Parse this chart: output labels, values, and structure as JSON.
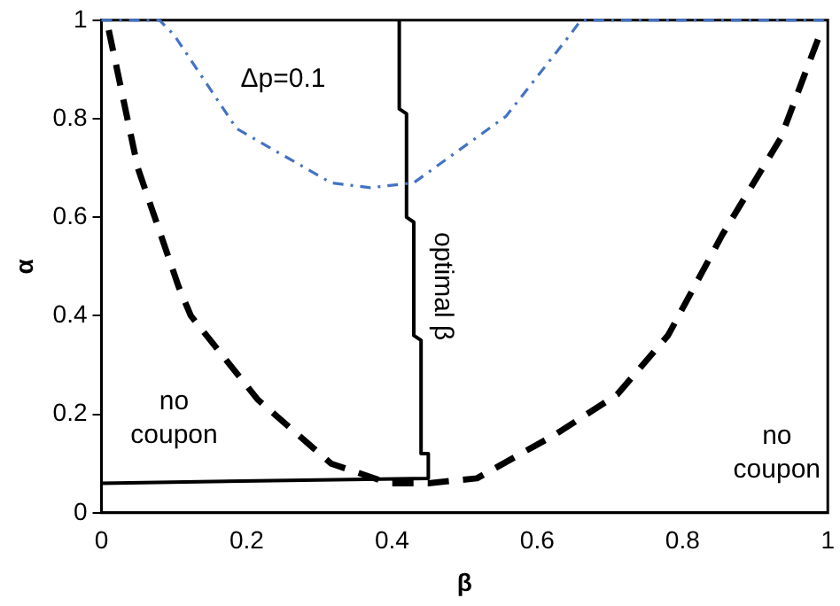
{
  "chart_data": {
    "type": "line",
    "xlabel": "β",
    "ylabel": "α",
    "xlim": [
      0,
      1
    ],
    "ylim": [
      0,
      1
    ],
    "xticks": [
      0,
      0.2,
      0.4,
      0.6,
      0.8,
      1
    ],
    "yticks": [
      0,
      0.2,
      0.4,
      0.6,
      0.8,
      1
    ],
    "grid": false,
    "legend": false,
    "marker": "none",
    "series": [
      {
        "color": "#000000",
        "line_style": "dashed",
        "x": [
          0.01,
          0.05,
          0.106,
          0.123,
          0.215,
          0.316,
          0.396,
          0.45,
          0.517,
          0.626,
          0.71,
          0.78,
          0.855,
          0.935,
          0.99
        ],
        "values": [
          0.98,
          0.7,
          0.46,
          0.4,
          0.23,
          0.1,
          0.06,
          0.06,
          0.07,
          0.16,
          0.24,
          0.36,
          0.565,
          0.76,
          0.975
        ]
      },
      {
        "color": "#4472c4",
        "line_style": "dotted",
        "x": [
          0,
          0.08,
          0.1,
          0.186,
          0.316,
          0.37,
          0.43,
          0.557,
          0.645,
          0.66,
          1
        ],
        "values": [
          1,
          1,
          0.97,
          0.78,
          0.67,
          0.66,
          0.67,
          0.805,
          0.97,
          1,
          1
        ]
      },
      {
        "color": "#000000",
        "line_style": "solid",
        "x": [
          0,
          0.45,
          0.45,
          0.44,
          0.44,
          0.43,
          0.43,
          0.42,
          0.42,
          0.41,
          0.41
        ],
        "values": [
          0.06,
          0.07,
          0.12,
          0.12,
          0.35,
          0.36,
          0.59,
          0.6,
          0.81,
          0.82,
          1
        ]
      }
    ],
    "annotations": [
      "Δp=0.1",
      "optimal β",
      "no coupon",
      "no coupon"
    ]
  }
}
